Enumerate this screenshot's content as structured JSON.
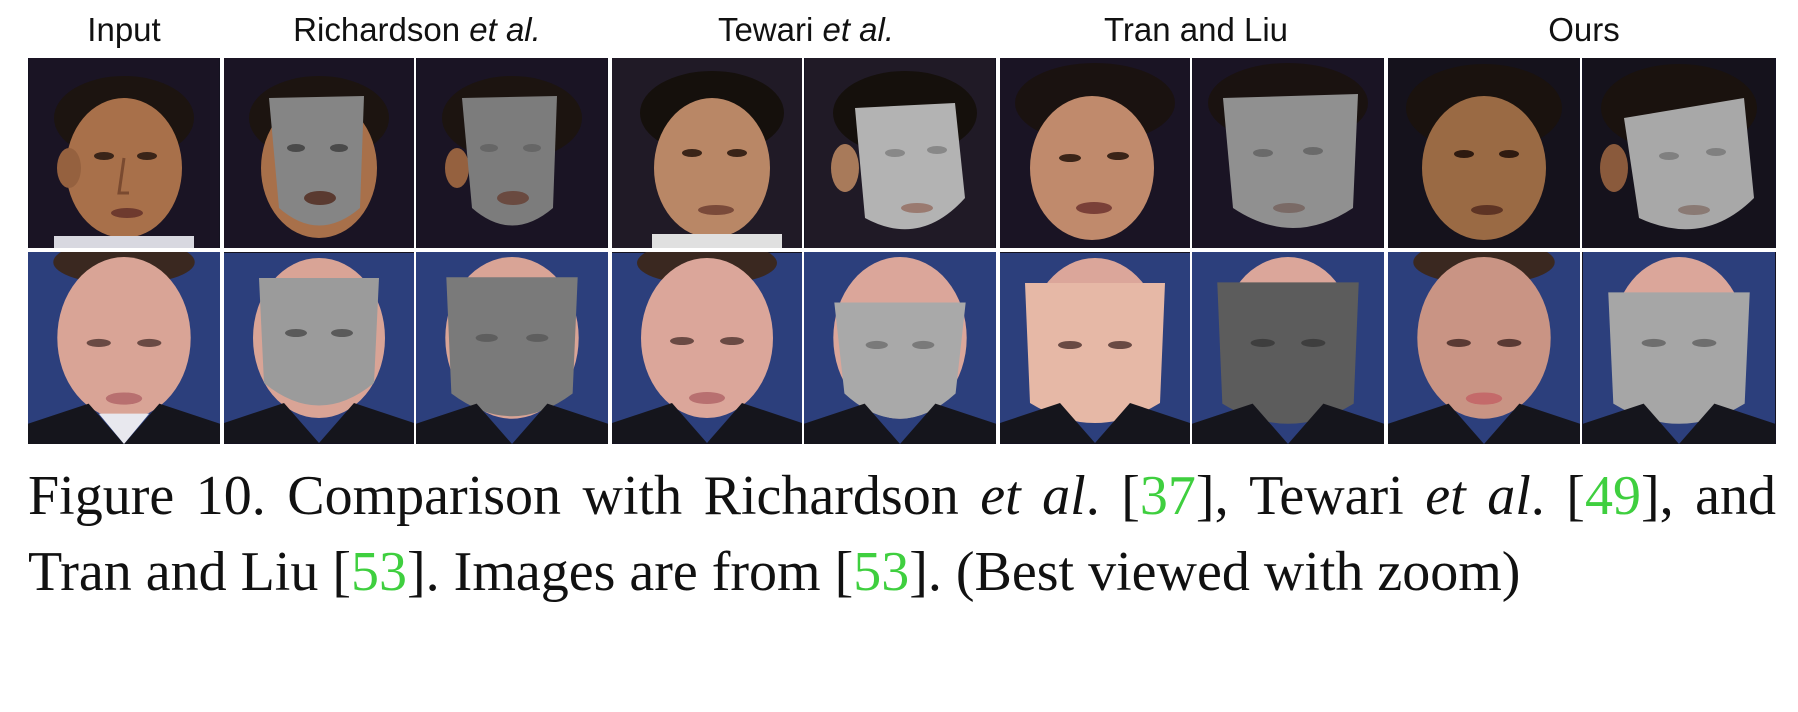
{
  "headers": {
    "input": "Input",
    "richardson": {
      "name": "Richardson",
      "etal": "et al."
    },
    "tewari": {
      "name": "Tewari",
      "etal": "et al."
    },
    "tran": "Tran and Liu",
    "ours": "Ours"
  },
  "caption": {
    "p1": "Figure 10. Comparison with Richardson ",
    "etal1": "et al",
    "p2": ". [",
    "ref1": "37",
    "p3": "], Tewari ",
    "etal2": "et al",
    "p4": ". [",
    "ref2": "49",
    "p5": "], and Tran and Liu [",
    "ref3": "53",
    "p6": "].  Images are from [",
    "ref4": "53",
    "p7": "].  (Best viewed with zoom)"
  },
  "colors": {
    "skin_row1": "#b07850",
    "skin_row2": "#d9a496",
    "gray_mesh": "#8d8d8d",
    "ref_green": "#3fcf3f",
    "studio_dark": "#141220",
    "studio_blue": "#2c3f7c"
  }
}
